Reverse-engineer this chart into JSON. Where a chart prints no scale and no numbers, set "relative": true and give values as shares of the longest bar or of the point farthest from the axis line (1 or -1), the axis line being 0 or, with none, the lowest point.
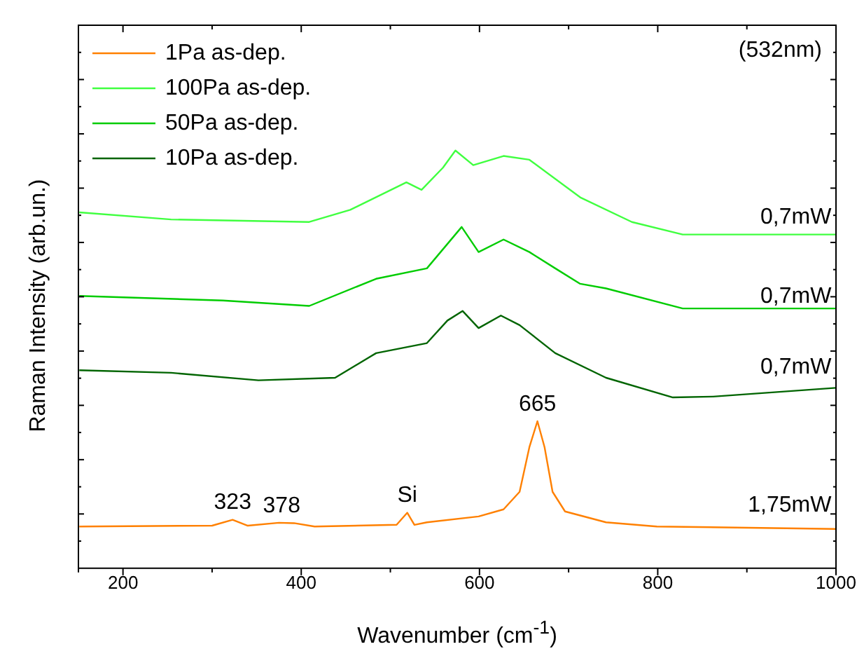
{
  "chart_data": {
    "type": "line",
    "relative": true,
    "xlabel": "Wavenumber (cm$^{-1}$)",
    "ylabel": "Raman Intensity (arb.un.)",
    "xlim": [
      150,
      1000
    ],
    "xticks": [
      {
        "value": 150,
        "label": null
      },
      200,
      {
        "value": 300,
        "label": null
      },
      400,
      {
        "value": 500,
        "label": null
      },
      600,
      {
        "value": 700,
        "label": null
      },
      800,
      {
        "value": 900,
        "label": null
      },
      1000
    ],
    "grid": false,
    "legend": "top left",
    "marker": "none",
    "line_style": "solid",
    "series": [
      {
        "name": "1Pa as-dep.",
        "color": "#ff8000",
        "x": [
          151,
          300,
          323,
          340,
          375,
          392,
          415,
          507,
          519,
          527,
          541,
          599,
          627,
          645,
          656,
          665,
          673,
          682,
          696,
          742,
          799,
          1000
        ],
        "values": [
          0.1,
          0.102,
          0.116,
          0.102,
          0.109,
          0.108,
          0.1,
          0.104,
          0.133,
          0.104,
          0.11,
          0.124,
          0.141,
          0.183,
          0.29,
          0.352,
          0.29,
          0.183,
          0.136,
          0.11,
          0.1,
          0.094
        ]
      },
      {
        "name": "100Pa as-dep.",
        "color": "#40ff40",
        "x": [
          151,
          254,
          409,
          455,
          518,
          535,
          559,
          573,
          593,
          627,
          656,
          713,
          771,
          828,
          1000
        ],
        "values": [
          0.852,
          0.835,
          0.829,
          0.858,
          0.924,
          0.906,
          0.959,
          1.0,
          0.965,
          0.987,
          0.978,
          0.888,
          0.829,
          0.799,
          0.799
        ]
      },
      {
        "name": "50Pa as-dep.",
        "color": "#00cc00",
        "x": [
          151,
          312,
          409,
          484,
          541,
          580,
          599,
          627,
          656,
          685,
          713,
          742,
          828,
          1000
        ],
        "values": [
          0.652,
          0.641,
          0.628,
          0.693,
          0.718,
          0.817,
          0.757,
          0.787,
          0.757,
          0.718,
          0.681,
          0.67,
          0.622,
          0.622
        ]
      },
      {
        "name": "10Pa as-dep.",
        "color": "#006400",
        "x": [
          151,
          254,
          352,
          438,
          484,
          541,
          564,
          581,
          599,
          624,
          645,
          685,
          742,
          817,
          862,
          1000
        ],
        "values": [
          0.474,
          0.468,
          0.45,
          0.456,
          0.515,
          0.539,
          0.593,
          0.616,
          0.575,
          0.605,
          0.582,
          0.515,
          0.456,
          0.409,
          0.411,
          0.432
        ]
      }
    ],
    "annotations": [
      "(532nm)",
      {
        "text": "0,7mW",
        "x": 955,
        "y": 0.8
      },
      {
        "text": "0,7mW",
        "x": 955,
        "y": 0.61
      },
      {
        "text": "0,7mW",
        "x": 955,
        "y": 0.44
      },
      {
        "text": "1,75mW",
        "x": 948,
        "y": 0.11
      },
      {
        "text": "323",
        "x": 323,
        "y": 0.116
      },
      {
        "text": "378",
        "x": 378,
        "y": 0.109
      },
      {
        "text": "Si",
        "x": 519,
        "y": 0.133
      },
      {
        "text": "665",
        "x": 665,
        "y": 0.352
      }
    ]
  }
}
